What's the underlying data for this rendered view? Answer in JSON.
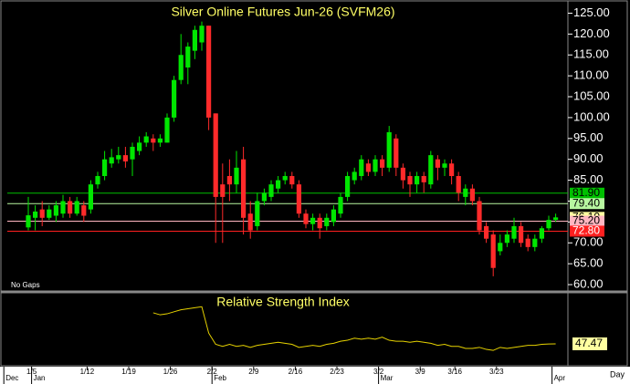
{
  "chart_data": {
    "type": "candlestick",
    "title": "Silver Online Futures Jun-26 (SVFM26)",
    "note": "No Gaps",
    "x_unit": "Day",
    "up_color": "#00e600",
    "down_color": "#ff2a2a",
    "open": [
      73.7,
      76,
      78,
      76,
      76.5,
      77,
      80,
      77,
      79,
      78,
      84,
      86,
      89,
      90,
      91,
      90,
      92,
      94,
      95,
      94,
      94,
      100,
      109,
      112,
      116,
      118,
      122,
      101,
      84,
      86,
      84,
      90,
      77,
      74,
      80,
      81,
      83,
      85,
      86,
      84,
      77,
      74.5,
      76,
      74,
      75,
      77,
      81,
      85,
      86,
      89,
      87,
      90,
      88,
      95,
      88,
      86,
      84,
      86,
      84,
      90,
      88,
      89,
      86,
      81,
      83,
      80,
      74,
      72,
      68,
      70,
      71,
      74,
      71,
      69,
      71,
      73.5,
      75.5
    ],
    "high": [
      81,
      79,
      80,
      79,
      80,
      81.5,
      81,
      81,
      80,
      85,
      87,
      92,
      92.5,
      93,
      93,
      94,
      95.5,
      96.5,
      96,
      96,
      101,
      110,
      120,
      118,
      122,
      123,
      122,
      101,
      89,
      90,
      92,
      93,
      80,
      82,
      83,
      85,
      86,
      87,
      87,
      85,
      78,
      77,
      77,
      77,
      79,
      82,
      87,
      88,
      91,
      90,
      91,
      91,
      98,
      96,
      89,
      87,
      87,
      87,
      92,
      91,
      90,
      90,
      87,
      84,
      84,
      81,
      75,
      73,
      72,
      73,
      76,
      75,
      72,
      72,
      74,
      76.5,
      77
    ],
    "low": [
      73,
      73,
      74,
      75.5,
      75,
      76,
      76,
      76.5,
      75,
      77,
      83,
      85,
      88,
      89,
      88,
      86,
      91,
      93,
      92,
      93,
      94,
      99,
      108,
      108,
      114,
      116,
      97,
      70,
      70,
      80,
      82,
      72,
      71,
      73,
      79,
      80,
      82,
      84,
      83,
      76,
      73.5,
      73,
      71,
      73,
      74,
      76,
      80,
      84,
      85,
      86,
      86,
      86,
      87,
      86,
      83,
      81,
      82,
      82,
      83,
      85,
      86,
      84,
      80,
      79,
      79,
      72,
      70,
      62,
      67,
      69,
      70,
      69,
      68,
      68,
      70,
      73,
      75
    ],
    "close": [
      76.6,
      77.5,
      76,
      78,
      79,
      80,
      77,
      80,
      76.5,
      84,
      86,
      90,
      90.5,
      91,
      89.5,
      93,
      94,
      95.5,
      94,
      95,
      100,
      109,
      115,
      117,
      121,
      122,
      100,
      81,
      81,
      84,
      88,
      76,
      73,
      80,
      82,
      84,
      85,
      86,
      84,
      77,
      74.5,
      76,
      73.5,
      76,
      78,
      81,
      86,
      87,
      90,
      87,
      90,
      88,
      96.5,
      88,
      85,
      84,
      86,
      84.5,
      91,
      88,
      89,
      86,
      82,
      83,
      80,
      73,
      71,
      64,
      70,
      72,
      74,
      70,
      69,
      71,
      73.5,
      75.5,
      76.1
    ],
    "ylim": [
      58.7,
      127.5
    ],
    "yticks": [
      {
        "value": 60,
        "label": "60.00"
      },
      {
        "value": 65,
        "label": "65.00"
      },
      {
        "value": 70,
        "label": "70.00"
      },
      {
        "value": 75,
        "label": "75.00"
      },
      {
        "value": 80,
        "label": "80.00"
      },
      {
        "value": 85,
        "label": "85.00"
      },
      {
        "value": 90,
        "label": "90.00"
      },
      {
        "value": 95,
        "label": "95.00"
      },
      {
        "value": 100,
        "label": "100.00"
      },
      {
        "value": 105,
        "label": "105.00"
      },
      {
        "value": 110,
        "label": "110.00"
      },
      {
        "value": 115,
        "label": "115.00"
      },
      {
        "value": 120,
        "label": "120.00"
      },
      {
        "value": 125,
        "label": "125.00"
      }
    ],
    "price_lines": [
      {
        "value": 81.9,
        "label": "81.90",
        "color": "#00c000",
        "line": true,
        "text_color": "#000"
      },
      {
        "value": 79.4,
        "label": "79.40",
        "color": "#b7f7a0",
        "line": true,
        "text_color": "#000"
      },
      {
        "value": 76.1,
        "label": "76.10",
        "color": "#ffffa0",
        "line": false,
        "text_color": "#000"
      },
      {
        "value": 75.2,
        "label": "75.20",
        "color": "#ffb6c1",
        "line": true,
        "text_color": "#000"
      },
      {
        "value": 72.8,
        "label": "72.80",
        "color": "#ff2020",
        "line": true,
        "text_color": "#fff"
      }
    ],
    "xticks": [
      {
        "value": 1,
        "label": "1/5"
      },
      {
        "value": 9,
        "label": "1/12"
      },
      {
        "value": 15,
        "label": "1/19"
      },
      {
        "value": 21,
        "label": "1/26"
      },
      {
        "value": 27,
        "label": "2/2"
      },
      {
        "value": 33,
        "label": "2/9"
      },
      {
        "value": 39,
        "label": "2/16"
      },
      {
        "value": 45,
        "label": "2/23"
      },
      {
        "value": 51,
        "label": "3/2"
      },
      {
        "value": 57,
        "label": "3/9"
      },
      {
        "value": 62,
        "label": "3/16"
      },
      {
        "value": 68,
        "label": "3/23"
      }
    ],
    "month_ticks": [
      {
        "value": -3,
        "label": "Dec"
      },
      {
        "value": 1,
        "label": "Jan"
      },
      {
        "value": 27,
        "label": "Feb"
      },
      {
        "value": 51,
        "label": "Mar"
      },
      {
        "value": 76,
        "label": "Apr"
      }
    ],
    "rsi": {
      "title": "Relative Strength Index",
      "color": "#e6d200",
      "ylim": [
        25,
        95
      ],
      "values": [
        null,
        null,
        null,
        null,
        null,
        null,
        null,
        null,
        null,
        null,
        null,
        null,
        null,
        null,
        null,
        null,
        null,
        null,
        78,
        76,
        77,
        79,
        81,
        82,
        83,
        84,
        58,
        47,
        45,
        47,
        45,
        46,
        44,
        46,
        47,
        48,
        49,
        48,
        47,
        44,
        45,
        46,
        45,
        47,
        48,
        50,
        51,
        53,
        52,
        53,
        52,
        54,
        51,
        50,
        50,
        49,
        50,
        49,
        48,
        46,
        47,
        45,
        45,
        43,
        43,
        44,
        42,
        41,
        44,
        43,
        44,
        45,
        46,
        46,
        47,
        47.3,
        47.47
      ]
    }
  }
}
